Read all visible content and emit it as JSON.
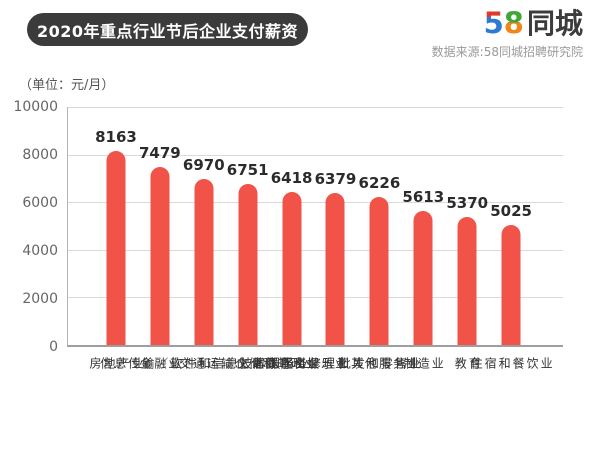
{
  "header": {
    "title": "2020年重点行业节后企业支付薪资",
    "source": "数据来源:58同城招聘研究院",
    "logo": {
      "digit5": "5",
      "digit8": "8",
      "suffix": "同城",
      "colors": {
        "red": "#E03A2C",
        "blue": "#2E7AD2",
        "green": "#3FA637",
        "orange": "#F08519",
        "text": "#3C3C3C"
      }
    },
    "pill_bg": "#3B3B3B"
  },
  "chart_data": {
    "type": "bar",
    "title": "2020年重点行业节后企业支付薪资",
    "unit_label": "（单位：元/月）",
    "unit": "元/月",
    "categories": [
      "房地产业",
      "金融业",
      "信息传输／软件和信息技术服务业",
      "交通运输仓储和邮政业",
      "文化体育和娱乐业",
      "居民服务修理和其他服务业",
      "批发和零售业",
      "制造业",
      "教育",
      "住宿和餐饮业"
    ],
    "category_lines": [
      [
        "房地产业"
      ],
      [
        "金融业"
      ],
      [
        "信息传输／软件",
        "和信息技术服务业"
      ],
      [
        "交通运输",
        "仓储和邮政业"
      ],
      [
        "文化",
        "体育和娱乐业"
      ],
      [
        "居民服务",
        "修理和其他服务业"
      ],
      [
        "批发和零售业"
      ],
      [
        "制造业"
      ],
      [
        "教育"
      ],
      [
        "住宿和餐饮业"
      ]
    ],
    "values": [
      8163,
      7479,
      6970,
      6751,
      6418,
      6379,
      6226,
      5613,
      5370,
      5025
    ],
    "xlabel": "",
    "ylabel": "",
    "ylim": [
      0,
      10000
    ],
    "yticks": [
      10000,
      8000,
      6000,
      4000,
      2000,
      0
    ],
    "grid": true,
    "legend": false,
    "bar_color": "#F15349",
    "grid_color": "#D9D9D9",
    "axis_color": "#9E9E9E",
    "value_label_color": "#2B2B2B",
    "tick_label_color": "#666666"
  }
}
